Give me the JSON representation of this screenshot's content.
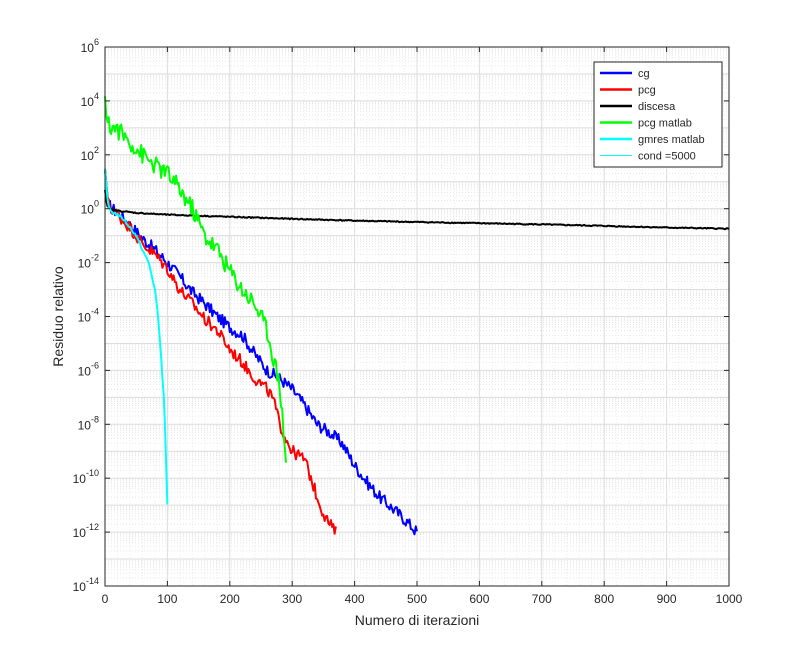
{
  "chart_data": {
    "type": "line",
    "xlabel": "Numero di iterazioni",
    "ylabel": "Residuo relativo",
    "xlim": [
      0,
      1000
    ],
    "ylim": [
      1e-14,
      1000000.0
    ],
    "yscale": "log",
    "grid": "major and minor",
    "legend_position": "top-right",
    "x_ticks": [
      0,
      100,
      200,
      300,
      400,
      500,
      600,
      700,
      800,
      900,
      1000
    ],
    "x_tick_labels": [
      "0",
      "100",
      "200",
      "300",
      "400",
      "500",
      "600",
      "700",
      "800",
      "900",
      "1000"
    ],
    "y_tick_exponents": [
      -14,
      -12,
      -10,
      -8,
      -6,
      -4,
      -2,
      0,
      2,
      4,
      6
    ],
    "y_tick_labels": [
      {
        "base": "10",
        "exp": "-14"
      },
      {
        "base": "10",
        "exp": "-12"
      },
      {
        "base": "10",
        "exp": "-10"
      },
      {
        "base": "10",
        "exp": "-8"
      },
      {
        "base": "10",
        "exp": "-6"
      },
      {
        "base": "10",
        "exp": "-4"
      },
      {
        "base": "10",
        "exp": "-2"
      },
      {
        "base": "10",
        "exp": "0"
      },
      {
        "base": "10",
        "exp": "2"
      },
      {
        "base": "10",
        "exp": "4"
      },
      {
        "base": "10",
        "exp": "6"
      }
    ],
    "series": [
      {
        "name": "cg",
        "color": "#0000ff",
        "noise": 0.45,
        "points": [
          [
            0,
            30
          ],
          [
            5,
            1.5
          ],
          [
            10,
            1.1
          ],
          [
            20,
            0.7
          ],
          [
            40,
            0.25
          ],
          [
            60,
            0.08
          ],
          [
            80,
            0.03
          ],
          [
            100,
            0.01
          ],
          [
            120,
            0.003
          ],
          [
            140,
            0.0008
          ],
          [
            160,
            0.0003
          ],
          [
            180,
            0.0001
          ],
          [
            200,
            4e-05
          ],
          [
            220,
            2e-05
          ],
          [
            240,
            4e-06
          ],
          [
            260,
            1e-06
          ],
          [
            280,
            5e-07
          ],
          [
            300,
            2e-07
          ],
          [
            320,
            5e-08
          ],
          [
            340,
            1e-08
          ],
          [
            360,
            5e-09
          ],
          [
            380,
            2e-09
          ],
          [
            400,
            3e-10
          ],
          [
            420,
            7e-11
          ],
          [
            440,
            2e-11
          ],
          [
            460,
            8e-12
          ],
          [
            480,
            3e-12
          ],
          [
            500,
            1e-12
          ]
        ]
      },
      {
        "name": "pcg",
        "color": "#ff0000",
        "noise": 0.45,
        "points": [
          [
            0,
            30
          ],
          [
            5,
            1.5
          ],
          [
            10,
            1.1
          ],
          [
            20,
            0.6
          ],
          [
            40,
            0.2
          ],
          [
            60,
            0.05
          ],
          [
            80,
            0.02
          ],
          [
            100,
            0.006
          ],
          [
            120,
            0.001
          ],
          [
            140,
            0.0003
          ],
          [
            160,
            8e-05
          ],
          [
            180,
            3e-05
          ],
          [
            200,
            6e-06
          ],
          [
            220,
            2e-06
          ],
          [
            240,
            5e-07
          ],
          [
            260,
            2e-07
          ],
          [
            270,
            8e-08
          ],
          [
            280,
            1e-08
          ],
          [
            290,
            3e-09
          ],
          [
            300,
            1e-09
          ],
          [
            320,
            5e-10
          ],
          [
            330,
            1e-10
          ],
          [
            340,
            2e-11
          ],
          [
            350,
            5e-12
          ],
          [
            360,
            2e-12
          ],
          [
            370,
            1e-12
          ]
        ]
      },
      {
        "name": "discesa",
        "color": "#000000",
        "noise": 0.04,
        "points": [
          [
            0,
            5
          ],
          [
            3,
            1.3
          ],
          [
            10,
            0.9
          ],
          [
            50,
            0.7
          ],
          [
            100,
            0.6
          ],
          [
            200,
            0.5
          ],
          [
            300,
            0.42
          ],
          [
            400,
            0.36
          ],
          [
            500,
            0.32
          ],
          [
            600,
            0.29
          ],
          [
            700,
            0.26
          ],
          [
            800,
            0.23
          ],
          [
            900,
            0.2
          ],
          [
            1000,
            0.18
          ]
        ]
      },
      {
        "name": "pcg matlab",
        "color": "#00ff00",
        "noise": 0.7,
        "points": [
          [
            0,
            15000
          ],
          [
            2,
            3000
          ],
          [
            5,
            1200
          ],
          [
            20,
            900
          ],
          [
            40,
            300
          ],
          [
            60,
            100
          ],
          [
            80,
            40
          ],
          [
            100,
            20
          ],
          [
            120,
            5
          ],
          [
            140,
            1
          ],
          [
            160,
            0.1
          ],
          [
            180,
            0.03
          ],
          [
            200,
            0.005
          ],
          [
            220,
            0.001
          ],
          [
            240,
            0.0003
          ],
          [
            250,
            0.0001
          ],
          [
            260,
            3e-05
          ],
          [
            270,
            3e-06
          ],
          [
            280,
            3e-07
          ],
          [
            290,
            5e-10
          ]
        ]
      },
      {
        "name": "gmres matlab",
        "color": "#00ffff",
        "noise": 0.1,
        "points": [
          [
            0,
            30
          ],
          [
            5,
            1.2
          ],
          [
            10,
            0.8
          ],
          [
            20,
            0.6
          ],
          [
            30,
            0.4
          ],
          [
            40,
            0.2
          ],
          [
            50,
            0.1
          ],
          [
            60,
            0.03
          ],
          [
            70,
            0.01
          ],
          [
            80,
            0.001
          ],
          [
            85,
            0.0001
          ],
          [
            90,
            3e-06
          ],
          [
            95,
            5e-08
          ],
          [
            100,
            1e-11
          ]
        ]
      },
      {
        "name": "cond =5000",
        "color": "#00ffff",
        "noise": 0,
        "points": []
      }
    ]
  }
}
